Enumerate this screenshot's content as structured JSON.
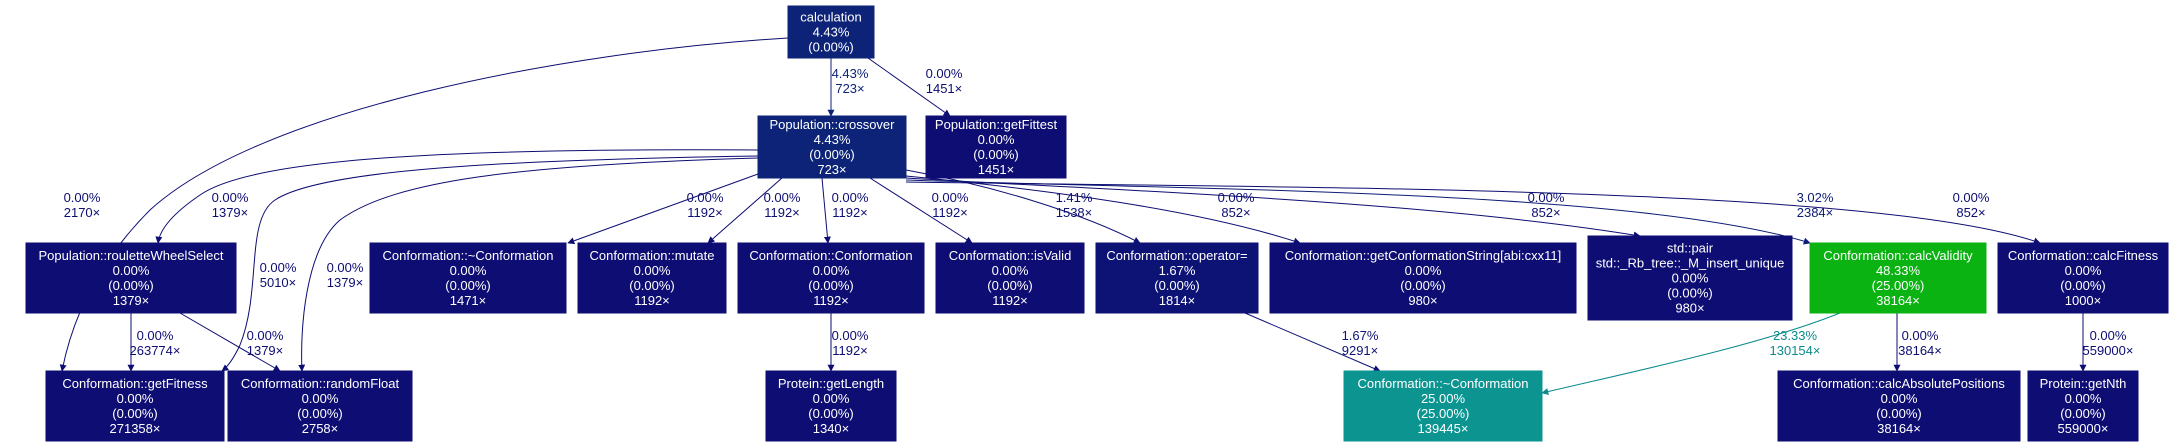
{
  "nodes": [
    {
      "id": "calculation",
      "lines": [
        "calculation",
        "4.43%",
        "(0.00%)"
      ],
      "fill": "#0d2377",
      "text": "#ffffff"
    },
    {
      "id": "crossover",
      "lines": [
        "Population::crossover",
        "4.43%",
        "(0.00%)",
        "723×"
      ],
      "fill": "#0d2377",
      "text": "#ffffff"
    },
    {
      "id": "getFittest",
      "lines": [
        "Population::getFittest",
        "0.00%",
        "(0.00%)",
        "1451×"
      ],
      "fill": "#0d0d73",
      "text": "#ffffff"
    },
    {
      "id": "rouletteWheelSelect",
      "lines": [
        "Population::rouletteWheelSelect",
        "0.00%",
        "(0.00%)",
        "1379×"
      ],
      "fill": "#0d0d73",
      "text": "#ffffff"
    },
    {
      "id": "dtor1",
      "lines": [
        "Conformation::~Conformation",
        "0.00%",
        "(0.00%)",
        "1471×"
      ],
      "fill": "#0d0d73",
      "text": "#ffffff"
    },
    {
      "id": "mutate",
      "lines": [
        "Conformation::mutate",
        "0.00%",
        "(0.00%)",
        "1192×"
      ],
      "fill": "#0d0d73",
      "text": "#ffffff"
    },
    {
      "id": "ctor",
      "lines": [
        "Conformation::Conformation",
        "0.00%",
        "(0.00%)",
        "1192×"
      ],
      "fill": "#0d0d73",
      "text": "#ffffff"
    },
    {
      "id": "isValid",
      "lines": [
        "Conformation::isValid",
        "0.00%",
        "(0.00%)",
        "1192×"
      ],
      "fill": "#0d0d73",
      "text": "#ffffff"
    },
    {
      "id": "operatorEq",
      "lines": [
        "Conformation::operator=",
        "1.67%",
        "(0.00%)",
        "1814×"
      ],
      "fill": "#0d1275",
      "text": "#ffffff"
    },
    {
      "id": "getConfString",
      "lines": [
        "Conformation::getConformationString[abi:cxx11]",
        "0.00%",
        "(0.00%)",
        "980×"
      ],
      "fill": "#0d0d73",
      "text": "#ffffff"
    },
    {
      "id": "rbtree",
      "lines": [
        "std::pair",
        "std::_Rb_tree::_M_insert_unique",
        "0.00%",
        "(0.00%)",
        "980×"
      ],
      "fill": "#0d0d73",
      "text": "#ffffff"
    },
    {
      "id": "calcValidity",
      "lines": [
        "Conformation::calcValidity",
        "48.33%",
        "(25.00%)",
        "38164×"
      ],
      "fill": "#0ab312",
      "text": "#ffffff"
    },
    {
      "id": "calcFitness",
      "lines": [
        "Conformation::calcFitness",
        "0.00%",
        "(0.00%)",
        "1000×"
      ],
      "fill": "#0d0d73",
      "text": "#ffffff"
    },
    {
      "id": "getFitness",
      "lines": [
        "Conformation::getFitness",
        "0.00%",
        "(0.00%)",
        "271358×"
      ],
      "fill": "#0d0d73",
      "text": "#ffffff"
    },
    {
      "id": "randomFloat",
      "lines": [
        "Conformation::randomFloat",
        "0.00%",
        "(0.00%)",
        "2758×"
      ],
      "fill": "#0d0d73",
      "text": "#ffffff"
    },
    {
      "id": "getLength",
      "lines": [
        "Protein::getLength",
        "0.00%",
        "(0.00%)",
        "1340×"
      ],
      "fill": "#0d0d73",
      "text": "#ffffff"
    },
    {
      "id": "dtor2",
      "lines": [
        "Conformation::~Conformation",
        "25.00%",
        "(25.00%)",
        "139445×"
      ],
      "fill": "#0c9491",
      "text": "#ffffff"
    },
    {
      "id": "calcAbsPos",
      "lines": [
        "Conformation::calcAbsolutePositions",
        "0.00%",
        "(0.00%)",
        "38164×"
      ],
      "fill": "#0d0d73",
      "text": "#ffffff"
    },
    {
      "id": "getNth",
      "lines": [
        "Protein::getNth",
        "0.00%",
        "(0.00%)",
        "559000×"
      ],
      "fill": "#0d0d73",
      "text": "#ffffff"
    }
  ],
  "edges": [
    {
      "from": "calculation",
      "to": "crossover",
      "lines": [
        "4.43%",
        "723×"
      ],
      "color": "#0d2377"
    },
    {
      "from": "calculation",
      "to": "getFittest",
      "lines": [
        "0.00%",
        "1451×"
      ],
      "color": "#0d0d73"
    },
    {
      "from": "calculation",
      "to": "getFitness",
      "lines": [
        "0.00%",
        "2170×"
      ],
      "color": "#0d0d73"
    },
    {
      "from": "crossover",
      "to": "rouletteWheelSelect",
      "lines": [
        "0.00%",
        "1379×"
      ],
      "color": "#0d0d73"
    },
    {
      "from": "crossover",
      "to": "getFitness",
      "lines": [
        "0.00%",
        "5010×"
      ],
      "color": "#0d0d73"
    },
    {
      "from": "crossover",
      "to": "randomFloat",
      "lines": [
        "0.00%",
        "1379×"
      ],
      "color": "#0d0d73"
    },
    {
      "from": "crossover",
      "to": "dtor1",
      "lines": [
        "0.00%",
        "1192×"
      ],
      "color": "#0d0d73"
    },
    {
      "from": "crossover",
      "to": "mutate",
      "lines": [
        "0.00%",
        "1192×"
      ],
      "color": "#0d0d73"
    },
    {
      "from": "crossover",
      "to": "ctor",
      "lines": [
        "0.00%",
        "1192×"
      ],
      "color": "#0d0d73"
    },
    {
      "from": "crossover",
      "to": "isValid",
      "lines": [
        "0.00%",
        "1192×"
      ],
      "color": "#0d0d73"
    },
    {
      "from": "crossover",
      "to": "operatorEq",
      "lines": [
        "1.41%",
        "1538×"
      ],
      "color": "#0d1275"
    },
    {
      "from": "crossover",
      "to": "getConfString",
      "lines": [
        "0.00%",
        "852×"
      ],
      "color": "#0d0d73"
    },
    {
      "from": "crossover",
      "to": "rbtree",
      "lines": [
        "0.00%",
        "852×"
      ],
      "color": "#0d0d73"
    },
    {
      "from": "crossover",
      "to": "calcValidity",
      "lines": [
        "3.02%",
        "2384×"
      ],
      "color": "#0d1c76"
    },
    {
      "from": "crossover",
      "to": "calcFitness",
      "lines": [
        "0.00%",
        "852×"
      ],
      "color": "#0d0d73"
    },
    {
      "from": "rouletteWheelSelect",
      "to": "getFitness",
      "lines": [
        "0.00%",
        "263774×"
      ],
      "color": "#0d0d73"
    },
    {
      "from": "rouletteWheelSelect",
      "to": "randomFloat",
      "lines": [
        "0.00%",
        "1379×"
      ],
      "color": "#0d0d73"
    },
    {
      "from": "ctor",
      "to": "getLength",
      "lines": [
        "0.00%",
        "1192×"
      ],
      "color": "#0d0d73"
    },
    {
      "from": "operatorEq",
      "to": "dtor2",
      "lines": [
        "1.67%",
        "9291×"
      ],
      "color": "#0d1275"
    },
    {
      "from": "calcValidity",
      "to": "dtor2",
      "lines": [
        "23.33%",
        "130154×"
      ],
      "color": "#0c8a8d"
    },
    {
      "from": "calcValidity",
      "to": "calcAbsPos",
      "lines": [
        "0.00%",
        "38164×"
      ],
      "color": "#0d0d73"
    },
    {
      "from": "calcFitness",
      "to": "getNth",
      "lines": [
        "0.00%",
        "559000×"
      ],
      "color": "#0d0d73"
    }
  ]
}
